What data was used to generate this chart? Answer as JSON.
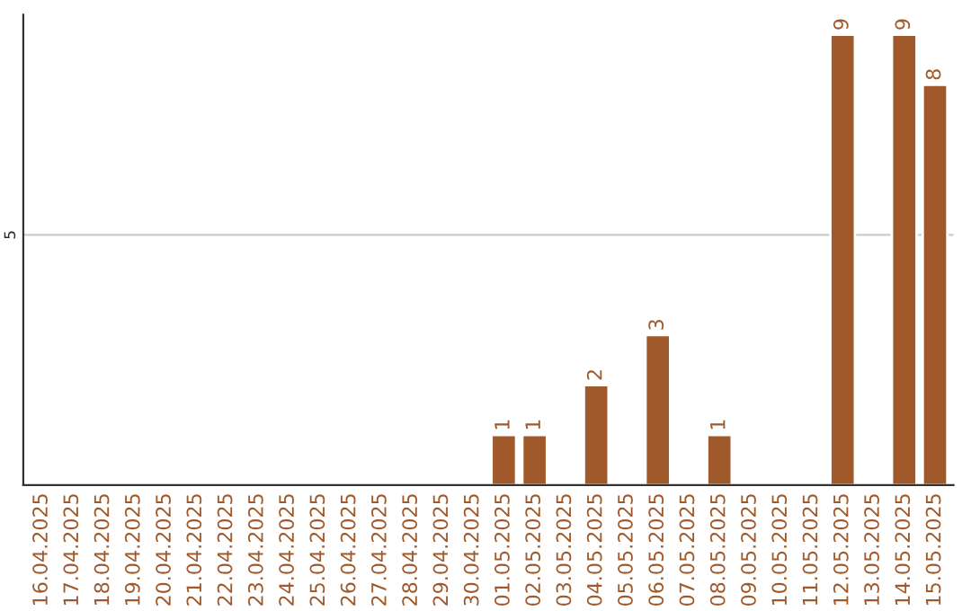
{
  "chart_data": {
    "type": "bar",
    "categories": [
      "16.04.2025",
      "17.04.2025",
      "18.04.2025",
      "19.04.2025",
      "20.04.2025",
      "21.04.2025",
      "22.04.2025",
      "23.04.2025",
      "24.04.2025",
      "25.04.2025",
      "26.04.2025",
      "27.04.2025",
      "28.04.2025",
      "29.04.2025",
      "30.04.2025",
      "01.05.2025",
      "02.05.2025",
      "03.05.2025",
      "04.05.2025",
      "05.05.2025",
      "06.05.2025",
      "07.05.2025",
      "08.05.2025",
      "09.05.2025",
      "10.05.2025",
      "11.05.2025",
      "12.05.2025",
      "13.05.2025",
      "14.05.2025",
      "15.05.2025"
    ],
    "values": [
      null,
      null,
      null,
      null,
      null,
      null,
      null,
      null,
      null,
      null,
      null,
      null,
      null,
      null,
      null,
      1,
      1,
      null,
      2,
      null,
      3,
      null,
      1,
      null,
      null,
      null,
      9,
      null,
      9,
      8
    ],
    "data_labels": true,
    "color": "#a0592a",
    "ylim": [
      0,
      9.4
    ],
    "yticks": [
      5
    ],
    "grid": "y"
  }
}
